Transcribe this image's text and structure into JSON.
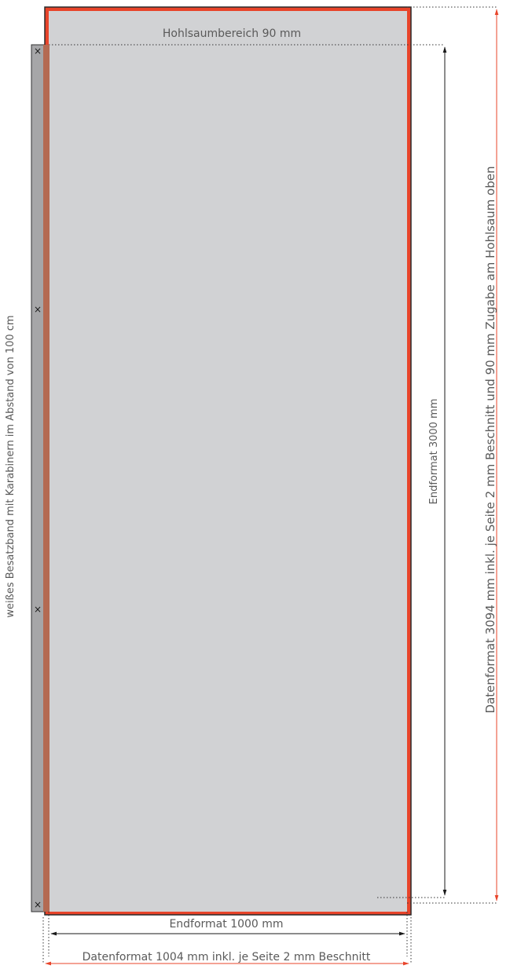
{
  "labels": {
    "hem_area": "Hohlsaumbereich 90 mm",
    "final_height": "Endformat  3000 mm",
    "data_height": "Datenformat 3094 mm inkl. je Seite 2 mm Beschnitt und 90 mm Zugabe am Hohlsaum oben",
    "strap": "weißes Besatzband mit Karabinern im Abstand von 100 cm",
    "final_width": "Endformat  1000 mm",
    "data_width": "Datenformat 1004 mm inkl. je Seite 2 mm Beschnitt"
  },
  "carabiner_marks": [
    "×",
    "×",
    "×",
    "×"
  ],
  "colors": {
    "panel_fill": "#d1d2d4",
    "bleed": "#e8442a",
    "strap_fill": "#a6a6a8",
    "black_arrow": "#1a1a1a",
    "red_arrow": "#e8442a",
    "text": "#5a5a5a"
  }
}
